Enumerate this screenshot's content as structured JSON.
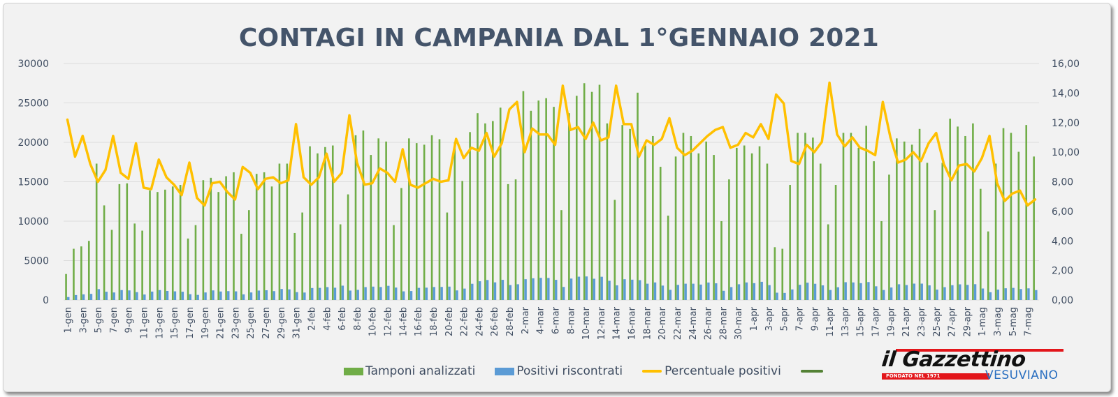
{
  "chart_data": {
    "type": "bar",
    "title": "CONTAGI IN CAMPANIA DAL 1°GENNAIO 2021",
    "xlabel": "",
    "ylabel": "",
    "y_left": {
      "min": 0,
      "max": 30000,
      "step": 5000,
      "ticks": [
        "0",
        "5000",
        "10000",
        "15000",
        "20000",
        "25000",
        "30000"
      ]
    },
    "y_right": {
      "min": 0,
      "max": 16,
      "step": 2,
      "ticks": [
        "0,00",
        "2,00",
        "4,00",
        "6,00",
        "8,00",
        "10,00",
        "12,00",
        "14,00",
        "16,00"
      ]
    },
    "grid": true,
    "legend_position": "bottom",
    "x_start_label": "1-gen",
    "x_label_every": 2,
    "months": [
      {
        "name": "gen",
        "days": 31
      },
      {
        "name": "feb",
        "days": 28
      },
      {
        "name": "mar",
        "days": 31
      },
      {
        "name": "apr",
        "days": 30
      },
      {
        "name": "mag",
        "days": 8
      }
    ],
    "series": [
      {
        "name": "Tamponi analizzati",
        "type": "bar",
        "axis": "left",
        "color": "#70ad47",
        "values": [
          3300,
          6500,
          6800,
          7500,
          17300,
          12000,
          8900,
          14700,
          14800,
          9700,
          8800,
          13900,
          13700,
          14000,
          14400,
          14600,
          7800,
          9500,
          15200,
          15500,
          13700,
          15700,
          16200,
          8400,
          11400,
          16000,
          16200,
          14400,
          17300,
          17300,
          8500,
          11100,
          19500,
          18600,
          19400,
          19600,
          9600,
          13400,
          20900,
          21500,
          18400,
          20500,
          20100,
          9500,
          14200,
          20500,
          19900,
          19700,
          20900,
          20400,
          11100,
          20000,
          15100,
          21300,
          23700,
          22400,
          22700,
          24400,
          14700,
          15300,
          26500,
          24000,
          25300,
          25600,
          24500,
          11400,
          23700,
          25900,
          27500,
          26400,
          27300,
          22400,
          12700,
          22200,
          21700,
          26300,
          19600,
          20800,
          16900,
          10700,
          18200,
          21200,
          20800,
          18600,
          20100,
          18400,
          10000,
          15300,
          19300,
          19600,
          18600,
          19500,
          17300,
          6700,
          6500,
          14600,
          21200,
          21200,
          20600,
          17300,
          9600,
          14600,
          21200,
          21200,
          19300,
          22100,
          17600,
          10000,
          15900,
          20500,
          20100,
          19700,
          21700,
          17400,
          11400,
          17400,
          23000,
          22000,
          20800,
          22400,
          14100,
          8700,
          17300,
          21800,
          21200,
          18800,
          22200,
          18200
        ],
        "color_name": "green"
      },
      {
        "name": "Positivi riscontrati",
        "type": "bar",
        "axis": "left",
        "color": "#5b9bd5",
        "values": [
          380,
          630,
          720,
          780,
          1380,
          1050,
          960,
          1260,
          1220,
          1000,
          700,
          1070,
          1260,
          1150,
          1100,
          1050,
          740,
          650,
          960,
          1220,
          1080,
          1130,
          1100,
          720,
          960,
          1200,
          1240,
          1130,
          1400,
          1350,
          1000,
          950,
          1520,
          1540,
          1640,
          1560,
          1820,
          1200,
          1290,
          1640,
          1700,
          1650,
          1800,
          1580,
          1100,
          1140,
          1540,
          1570,
          1650,
          1660,
          1700,
          1220,
          1450,
          2060,
          2380,
          2540,
          2240,
          2560,
          1900,
          2000,
          2640,
          2760,
          2810,
          2800,
          2560,
          1660,
          2720,
          2960,
          2990,
          2700,
          2950,
          2440,
          1860,
          2640,
          2580,
          2520,
          2070,
          2230,
          1830,
          1290,
          1920,
          2070,
          2070,
          1960,
          2220,
          2120,
          1170,
          1640,
          2000,
          2230,
          2140,
          2310,
          1890,
          930,
          900,
          1340,
          1930,
          2200,
          2060,
          1860,
          1270,
          1620,
          2260,
          2230,
          2140,
          2280,
          1740,
          1270,
          1590,
          2000,
          1900,
          2080,
          2080,
          1860,
          1320,
          1630,
          1880,
          1990,
          1920,
          2010,
          1460,
          990,
          1320,
          1490,
          1540,
          1390,
          1480,
          1260
        ],
        "color_name": "blue"
      },
      {
        "name": "Percentuale positivi",
        "type": "line",
        "axis": "right",
        "color": "#ffc000",
        "values": [
          12.2,
          9.7,
          11.1,
          9.2,
          8.0,
          8.8,
          11.1,
          8.6,
          8.2,
          10.6,
          7.6,
          7.5,
          9.5,
          8.3,
          7.8,
          7.1,
          9.3,
          6.9,
          6.4,
          7.9,
          8.0,
          7.3,
          6.8,
          9.0,
          8.6,
          7.5,
          8.2,
          8.3,
          7.9,
          8.1,
          11.9,
          8.3,
          7.8,
          8.3,
          9.9,
          8.0,
          8.6,
          12.5,
          9.3,
          7.8,
          7.9,
          8.9,
          8.6,
          8.0,
          10.2,
          7.8,
          7.6,
          7.9,
          8.2,
          8.0,
          8.1,
          10.9,
          9.6,
          10.3,
          10.1,
          11.3,
          9.7,
          10.6,
          12.9,
          13.4,
          10.0,
          11.6,
          11.2,
          11.2,
          10.5,
          14.5,
          11.5,
          11.7,
          10.9,
          12.0,
          10.8,
          11.0,
          14.5,
          11.9,
          11.9,
          9.7,
          10.8,
          10.5,
          10.9,
          12.3,
          10.3,
          9.8,
          10.1,
          10.6,
          11.1,
          11.5,
          11.7,
          10.3,
          10.5,
          11.3,
          11.0,
          11.9,
          10.9,
          13.9,
          13.3,
          9.4,
          9.2,
          10.5,
          10.0,
          10.7,
          14.7,
          11.2,
          10.4,
          11.0,
          10.3,
          10.1,
          9.8,
          13.4,
          11.0,
          9.3,
          9.5,
          10.0,
          9.4,
          10.6,
          11.3,
          9.2,
          8.1,
          9.1,
          9.2,
          8.7,
          9.6,
          11.1,
          7.9,
          6.7,
          7.2,
          7.4,
          6.4,
          6.8
        ]
      },
      {
        "name": "",
        "type": "legend-only",
        "color": "#548235"
      }
    ]
  },
  "logo": {
    "main": "il Gazzettino",
    "tagline": "FONDATO NEL 1971",
    "sub": "VESUVIANO"
  }
}
